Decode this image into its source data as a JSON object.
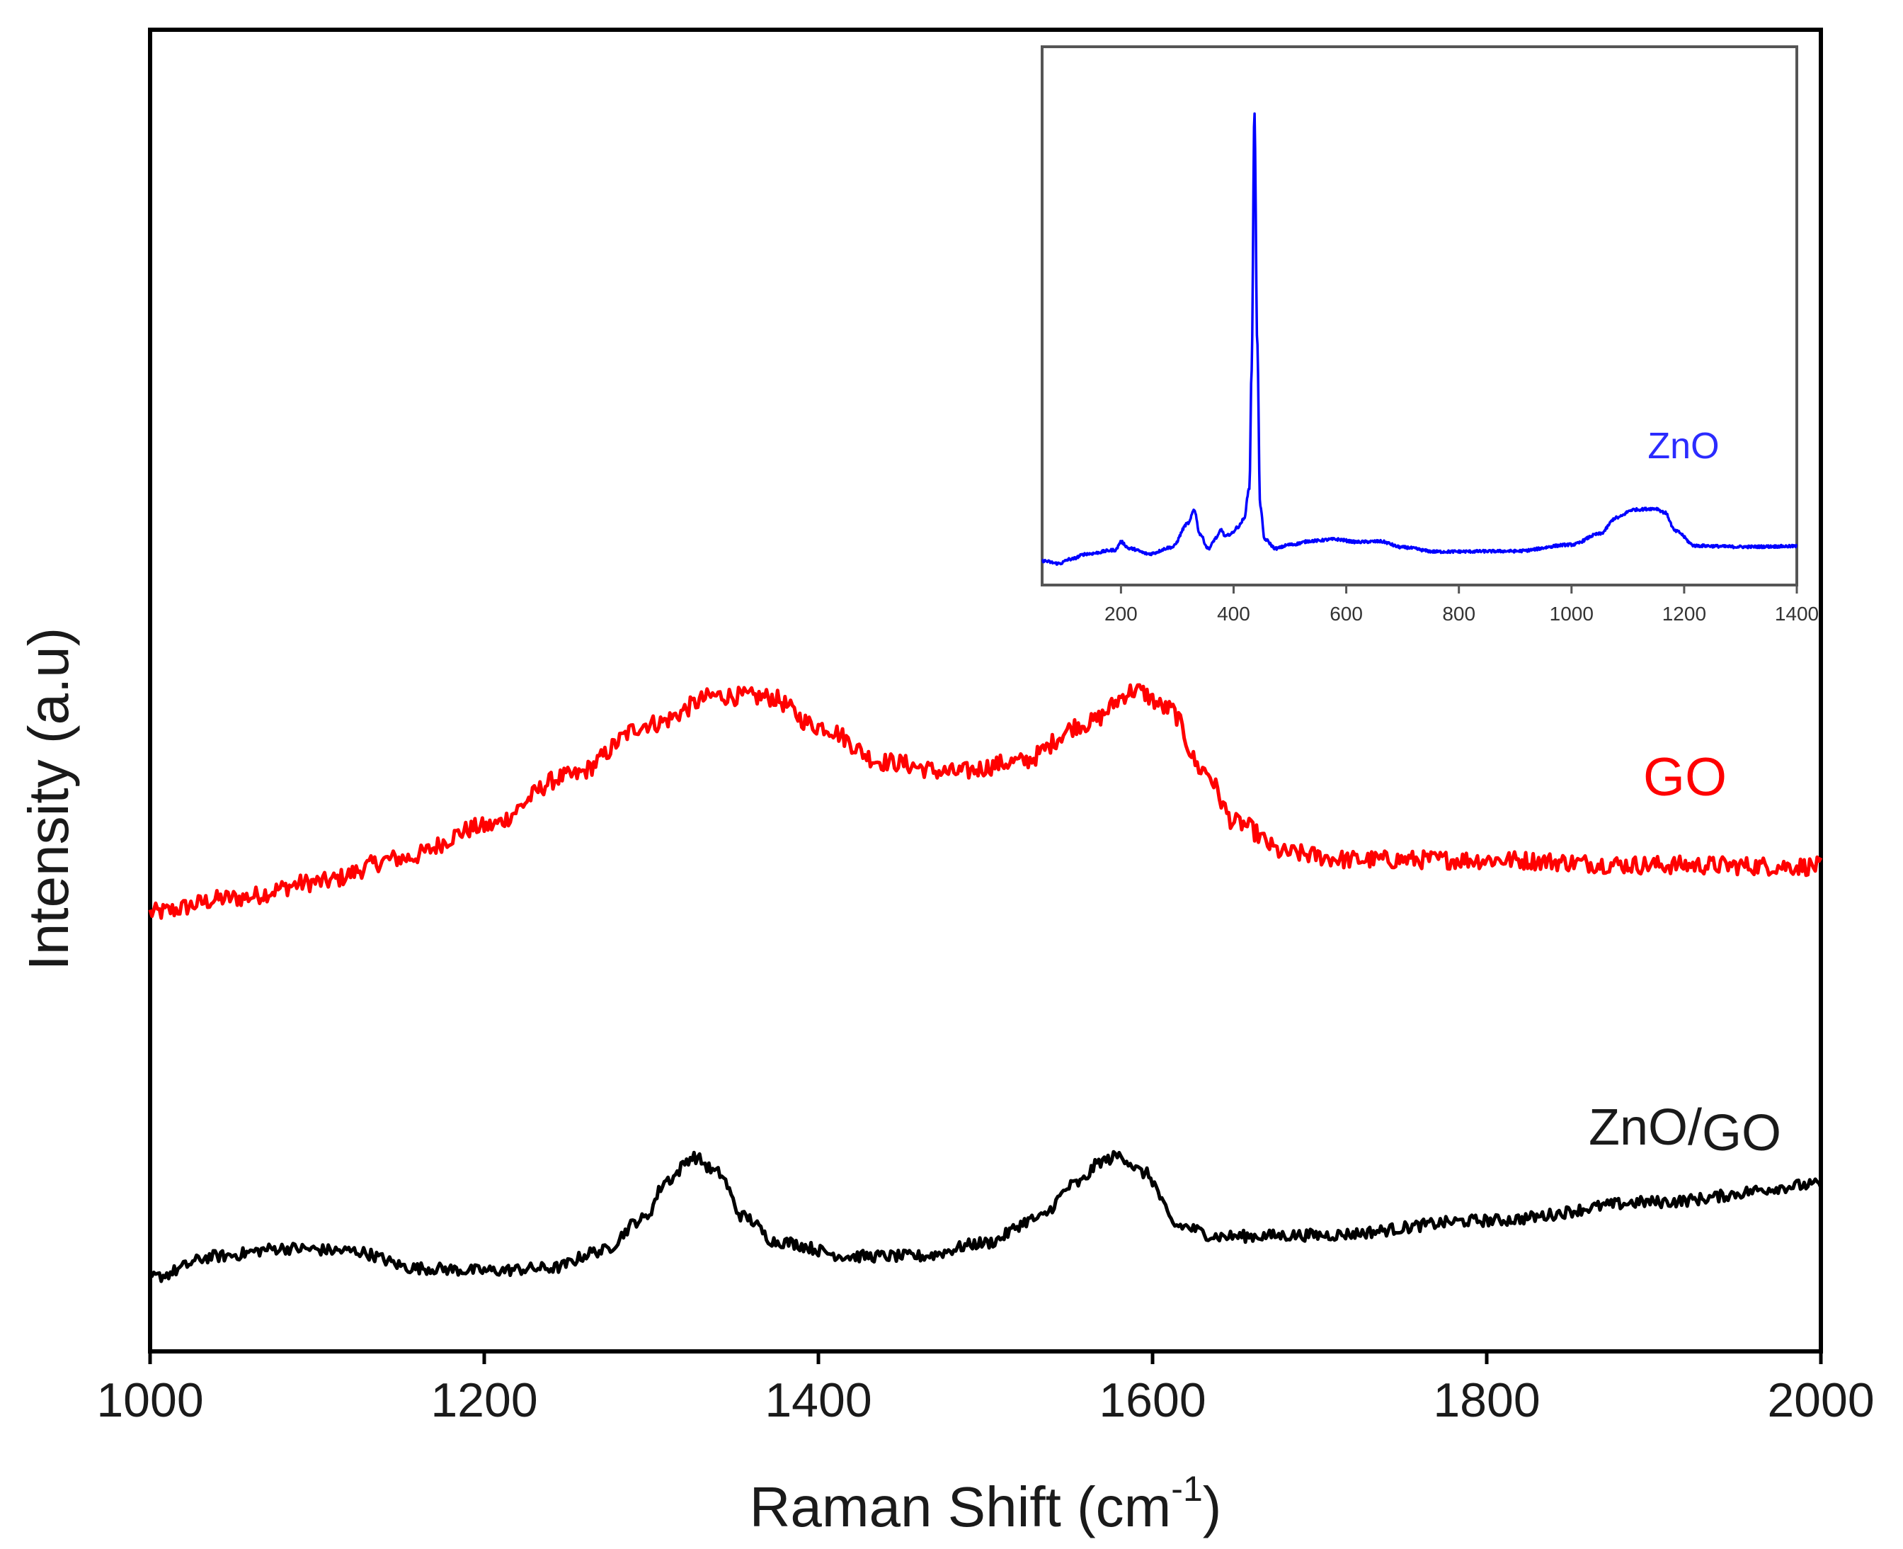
{
  "chart_data": [
    {
      "id": "main",
      "type": "line",
      "title": "",
      "xlabel_main": "Raman Shift (cm",
      "xlabel_sup": "-1",
      "xlabel_close": ")",
      "ylabel": "Intensity (a.u)",
      "xlim": [
        1000,
        2000
      ],
      "ylim": [
        0,
        100
      ],
      "xticks": [
        1000,
        1200,
        1400,
        1600,
        1800,
        2000
      ],
      "xtick_labels": [
        "1000",
        "1200",
        "1400",
        "1600",
        "1800",
        "2000"
      ],
      "yticks_shown": false,
      "grid": false,
      "series": [
        {
          "name": "GO",
          "label": "GO",
          "color": "#ff0000",
          "noise": 0.7,
          "x": [
            1000,
            1050,
            1100,
            1150,
            1200,
            1250,
            1300,
            1340,
            1370,
            1400,
            1440,
            1480,
            1520,
            1560,
            1590,
            1610,
            1630,
            1650,
            1680,
            1720,
            1800,
            1900,
            2000
          ],
          "y": [
            33.2,
            34.3,
            35.5,
            37.3,
            39.7,
            43.5,
            47.5,
            49.6,
            49.5,
            47.3,
            44.6,
            43.8,
            44.6,
            47.5,
            50.0,
            48.6,
            44.0,
            40.0,
            37.7,
            37.2,
            37.2,
            36.8,
            36.7
          ]
        },
        {
          "name": "ZnO/GO",
          "label_main": "ZnO/",
          "label_tail": "GO",
          "color": "#000000",
          "noise": 0.45,
          "x": [
            1000,
            1040,
            1080,
            1120,
            1160,
            1200,
            1240,
            1270,
            1295,
            1310,
            1325,
            1340,
            1355,
            1375,
            1420,
            1460,
            1500,
            1530,
            1555,
            1570,
            1580,
            1595,
            1615,
            1640,
            1700,
            1800,
            1900,
            2000
          ],
          "y": [
            5.6,
            7.2,
            7.8,
            7.6,
            6.3,
            6.1,
            6.3,
            7.6,
            10.0,
            13.0,
            14.7,
            13.5,
            10.2,
            8.3,
            7.2,
            7.2,
            8.2,
            10.0,
            12.7,
            14.4,
            14.8,
            13.5,
            9.5,
            8.7,
            8.8,
            9.9,
            11.3,
            12.6
          ]
        }
      ]
    },
    {
      "id": "inset",
      "type": "line",
      "title": "",
      "xlim": [
        60,
        1400
      ],
      "ylim": [
        0,
        100
      ],
      "xticks": [
        200,
        400,
        600,
        800,
        1000,
        1200,
        1400
      ],
      "xtick_labels": [
        "200",
        "400",
        "600",
        "800",
        "1000",
        "1200",
        "1400"
      ],
      "yticks_shown": false,
      "grid": false,
      "series": [
        {
          "name": "ZnO",
          "label": "ZnO",
          "color": "#0000ff",
          "noise": 0.25,
          "x": [
            60,
            90,
            110,
            140,
            190,
            200,
            215,
            250,
            290,
            320,
            330,
            340,
            355,
            370,
            378,
            385,
            395,
            408,
            418,
            428,
            432,
            437,
            442,
            447,
            455,
            475,
            500,
            540,
            580,
            620,
            660,
            700,
            760,
            900,
            1000,
            1050,
            1080,
            1110,
            1150,
            1165,
            1185,
            1220,
            1300,
            1400
          ],
          "y": [
            4.5,
            4.0,
            4.8,
            5.8,
            6.5,
            8.0,
            6.8,
            5.8,
            7.0,
            11.5,
            14.0,
            9.5,
            6.8,
            8.8,
            10.3,
            9.0,
            9.5,
            10.8,
            12.2,
            18.0,
            40.0,
            88.0,
            45.0,
            15.0,
            8.5,
            6.8,
            7.5,
            8.2,
            8.5,
            8.0,
            8.1,
            7.0,
            6.2,
            6.3,
            7.5,
            9.5,
            12.5,
            14.0,
            14.2,
            13.5,
            10.0,
            7.3,
            7.1,
            7.2
          ]
        }
      ]
    }
  ]
}
